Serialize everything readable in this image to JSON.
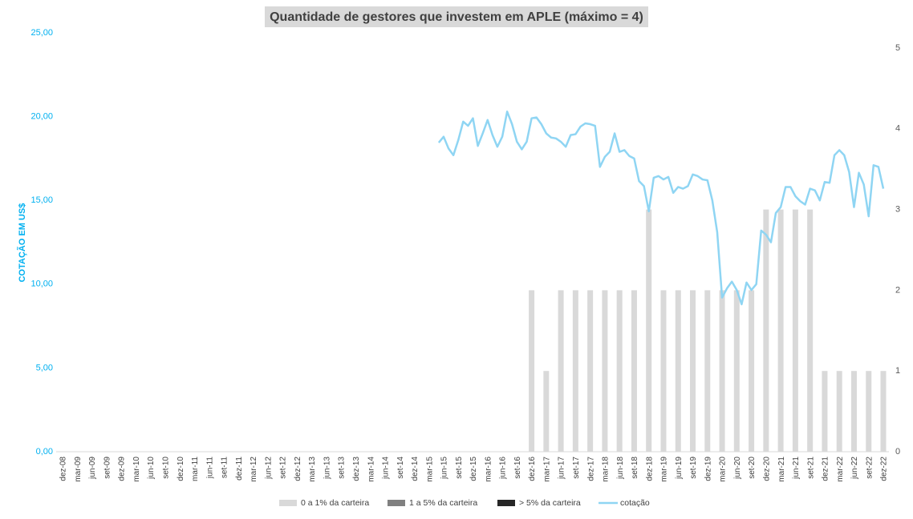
{
  "chart_data": {
    "type": "bar",
    "title": "Quantidade de gestores que investem em APLE (máximo = 4)",
    "y_axis_label": "COTAÇÃO EM US$",
    "legend": "bottom",
    "categories": [
      "dez-08",
      null,
      null,
      "mar-09",
      null,
      null,
      "jun-09",
      null,
      null,
      "set-09",
      null,
      null,
      "dez-09",
      null,
      null,
      "mar-10",
      null,
      null,
      "jun-10",
      null,
      null,
      "set-10",
      null,
      null,
      "dez-10",
      null,
      null,
      "mar-11",
      null,
      null,
      "jun-11",
      null,
      null,
      "set-11",
      null,
      null,
      "dez-11",
      null,
      null,
      "mar-12",
      null,
      null,
      "jun-12",
      null,
      null,
      "set-12",
      null,
      null,
      "dez-12",
      null,
      null,
      "mar-13",
      null,
      null,
      "jun-13",
      null,
      null,
      "set-13",
      null,
      null,
      "dez-13",
      null,
      null,
      "mar-14",
      null,
      null,
      "jun-14",
      null,
      null,
      "set-14",
      null,
      null,
      "dez-14",
      null,
      null,
      "mar-15",
      null,
      null,
      "jun-15",
      null,
      null,
      "set-15",
      null,
      null,
      "dez-15",
      null,
      null,
      "mar-16",
      null,
      null,
      "jun-16",
      null,
      null,
      "set-16",
      null,
      null,
      "dez-16",
      null,
      null,
      "mar-17",
      null,
      null,
      "jun-17",
      null,
      null,
      "set-17",
      null,
      null,
      "dez-17",
      null,
      null,
      "mar-18",
      null,
      null,
      "jun-18",
      null,
      null,
      "set-18",
      null,
      null,
      "dez-18",
      null,
      null,
      "mar-19",
      null,
      null,
      "jun-19",
      null,
      null,
      "set-19",
      null,
      null,
      "dez-19",
      null,
      null,
      "mar-20",
      null,
      null,
      "jun-20",
      null,
      null,
      "set-20",
      null,
      null,
      "dez-20",
      null,
      null,
      "mar-21",
      null,
      null,
      "jun-21",
      null,
      null,
      "set-21",
      null,
      null,
      "dez-21",
      null,
      null,
      "mar-22",
      null,
      null,
      "jun-22",
      null,
      null,
      "set-22",
      null,
      null,
      "dez-22"
    ],
    "ylim": [
      0,
      25
    ],
    "yticks": [
      {
        "value": 0,
        "label": "0,00"
      },
      {
        "value": 5,
        "label": "5,00"
      },
      {
        "value": 10,
        "label": "10,00"
      },
      {
        "value": 15,
        "label": "15,00"
      },
      {
        "value": 20,
        "label": "20,00"
      },
      {
        "value": 25,
        "label": "25,00"
      }
    ],
    "y2lim": [
      0,
      5
    ],
    "y2ticks": [
      0,
      1,
      2,
      3,
      4,
      5
    ],
    "series": [
      {
        "name": "0 a 1% da carteira",
        "type": "bar",
        "axis": "y2",
        "color": "#d9d9d9",
        "values": [
          0,
          null,
          null,
          0,
          null,
          null,
          0,
          null,
          null,
          0,
          null,
          null,
          0,
          null,
          null,
          0,
          null,
          null,
          0,
          null,
          null,
          0,
          null,
          null,
          0,
          null,
          null,
          0,
          null,
          null,
          0,
          null,
          null,
          0,
          null,
          null,
          0,
          null,
          null,
          0,
          null,
          null,
          0,
          null,
          null,
          0,
          null,
          null,
          0,
          null,
          null,
          0,
          null,
          null,
          0,
          null,
          null,
          0,
          null,
          null,
          0,
          null,
          null,
          0,
          null,
          null,
          0,
          null,
          null,
          0,
          null,
          null,
          0,
          null,
          null,
          0,
          null,
          null,
          0,
          null,
          null,
          0,
          null,
          null,
          0,
          null,
          null,
          0,
          null,
          null,
          0,
          null,
          null,
          0,
          null,
          null,
          2,
          null,
          null,
          1,
          null,
          null,
          2,
          null,
          null,
          2,
          null,
          null,
          2,
          null,
          null,
          2,
          null,
          null,
          2,
          null,
          null,
          2,
          null,
          null,
          3,
          null,
          null,
          2,
          null,
          null,
          2,
          null,
          null,
          2,
          null,
          null,
          2,
          null,
          null,
          2,
          null,
          null,
          2,
          null,
          null,
          2,
          null,
          null,
          3,
          null,
          null,
          3,
          null,
          null,
          3,
          null,
          null,
          3,
          null,
          null,
          1,
          null,
          null,
          1,
          null,
          null,
          1,
          null,
          null,
          1,
          null,
          null,
          1
        ]
      },
      {
        "name": "1 a 5% da carteira",
        "type": "bar",
        "axis": "y2",
        "color": "#808080",
        "values": [
          0,
          null,
          null,
          0,
          null,
          null,
          0,
          null,
          null,
          0,
          null,
          null,
          0,
          null,
          null,
          0,
          null,
          null,
          0,
          null,
          null,
          0,
          null,
          null,
          0,
          null,
          null,
          0,
          null,
          null,
          0,
          null,
          null,
          0,
          null,
          null,
          0,
          null,
          null,
          0,
          null,
          null,
          0,
          null,
          null,
          0,
          null,
          null,
          0,
          null,
          null,
          0,
          null,
          null,
          0,
          null,
          null,
          0,
          null,
          null,
          0,
          null,
          null,
          0,
          null,
          null,
          0,
          null,
          null,
          0,
          null,
          null,
          0,
          null,
          null,
          0,
          null,
          null,
          0,
          null,
          null,
          0,
          null,
          null,
          0,
          null,
          null,
          0,
          null,
          null,
          0,
          null,
          null,
          0,
          null,
          null,
          0,
          null,
          null,
          0,
          null,
          null,
          0,
          null,
          null,
          0,
          null,
          null,
          0,
          null,
          null,
          0,
          null,
          null,
          0,
          null,
          null,
          0,
          null,
          null,
          0,
          null,
          null,
          0,
          null,
          null,
          0,
          null,
          null,
          0,
          null,
          null,
          0,
          null,
          null,
          0,
          null,
          null,
          0,
          null,
          null,
          0,
          null,
          null,
          0,
          null,
          null,
          0,
          null,
          null,
          0,
          null,
          null,
          0,
          null,
          null,
          0,
          null,
          null,
          0,
          null,
          null,
          0,
          null,
          null,
          0,
          null,
          null,
          0
        ]
      },
      {
        "name": "> 5% da carteira",
        "type": "bar",
        "axis": "y2",
        "color": "#262626",
        "values": [
          0,
          null,
          null,
          0,
          null,
          null,
          0,
          null,
          null,
          0,
          null,
          null,
          0,
          null,
          null,
          0,
          null,
          null,
          0,
          null,
          null,
          0,
          null,
          null,
          0,
          null,
          null,
          0,
          null,
          null,
          0,
          null,
          null,
          0,
          null,
          null,
          0,
          null,
          null,
          0,
          null,
          null,
          0,
          null,
          null,
          0,
          null,
          null,
          0,
          null,
          null,
          0,
          null,
          null,
          0,
          null,
          null,
          0,
          null,
          null,
          0,
          null,
          null,
          0,
          null,
          null,
          0,
          null,
          null,
          0,
          null,
          null,
          0,
          null,
          null,
          0,
          null,
          null,
          0,
          null,
          null,
          0,
          null,
          null,
          0,
          null,
          null,
          0,
          null,
          null,
          0,
          null,
          null,
          0,
          null,
          null,
          0,
          null,
          null,
          0,
          null,
          null,
          0,
          null,
          null,
          0,
          null,
          null,
          0,
          null,
          null,
          0,
          null,
          null,
          0,
          null,
          null,
          0,
          null,
          null,
          0,
          null,
          null,
          0,
          null,
          null,
          0,
          null,
          null,
          0,
          null,
          null,
          0,
          null,
          null,
          0,
          null,
          null,
          0,
          null,
          null,
          0,
          null,
          null,
          0,
          null,
          null,
          0,
          null,
          null,
          0,
          null,
          null,
          0,
          null,
          null,
          0,
          null,
          null,
          0,
          null,
          null,
          0,
          null,
          null,
          0,
          null,
          null,
          0
        ]
      },
      {
        "name": "cotação",
        "type": "line",
        "color": "#8fd5f3",
        "values": [
          null,
          null,
          null,
          null,
          null,
          null,
          null,
          null,
          null,
          null,
          null,
          null,
          null,
          null,
          null,
          null,
          null,
          null,
          null,
          null,
          null,
          null,
          null,
          null,
          null,
          null,
          null,
          null,
          null,
          null,
          null,
          null,
          null,
          null,
          null,
          null,
          null,
          null,
          null,
          null,
          null,
          null,
          null,
          null,
          null,
          null,
          null,
          null,
          null,
          null,
          null,
          null,
          null,
          null,
          null,
          null,
          null,
          null,
          null,
          null,
          null,
          null,
          null,
          null,
          null,
          null,
          null,
          null,
          null,
          null,
          null,
          null,
          null,
          null,
          null,
          null,
          null,
          18.45,
          18.8,
          18.1,
          17.7,
          18.6,
          19.7,
          19.45,
          19.9,
          18.25,
          19.0,
          19.8,
          18.9,
          18.2,
          18.8,
          20.3,
          19.55,
          18.5,
          18.05,
          18.5,
          19.9,
          19.95,
          19.55,
          19.0,
          18.75,
          18.7,
          18.5,
          18.2,
          18.9,
          18.95,
          19.4,
          19.6,
          19.55,
          19.45,
          17.0,
          17.6,
          17.9,
          19.0,
          17.9,
          18.0,
          17.65,
          17.5,
          16.15,
          15.85,
          14.35,
          16.35,
          16.45,
          16.25,
          16.4,
          15.45,
          15.8,
          15.7,
          15.85,
          16.55,
          16.45,
          16.25,
          16.2,
          15.0,
          13.1,
          9.2,
          9.75,
          10.15,
          9.65,
          8.8,
          10.1,
          9.65,
          10.0,
          13.2,
          12.95,
          12.5,
          14.25,
          14.6,
          15.8,
          15.8,
          15.25,
          14.95,
          14.75,
          15.7,
          15.6,
          15.0,
          16.1,
          16.05,
          17.7,
          18.0,
          17.7,
          16.7,
          14.6,
          16.65,
          15.95,
          14.05,
          17.1,
          17.0,
          15.7
        ]
      }
    ]
  }
}
